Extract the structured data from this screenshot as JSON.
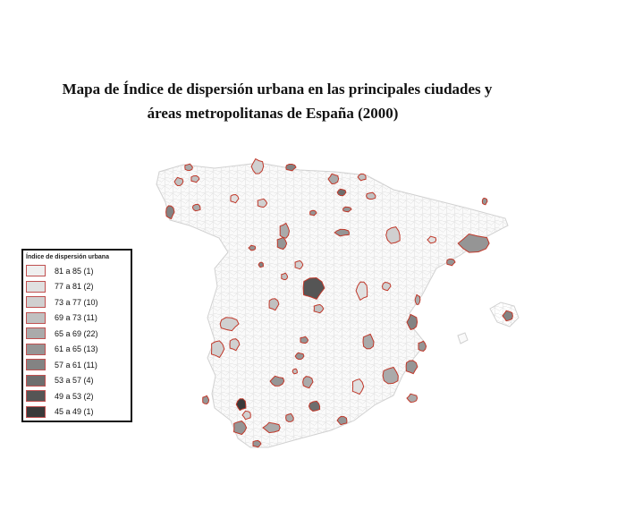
{
  "title": {
    "line1": "Mapa de Índice de dispersión urbana en las principales ciudades y",
    "line2": "áreas metropolitanas de España (2000)"
  },
  "legend": {
    "title": "Índice de dispersión urbana",
    "placement": "bottom-left",
    "items": [
      {
        "label": "81 a 85 (1)",
        "color": "#efefef"
      },
      {
        "label": "77 a 81 (2)",
        "color": "#e0e0e0"
      },
      {
        "label": "73 a 77 (10)",
        "color": "#d0d0d0"
      },
      {
        "label": "69 a 73 (11)",
        "color": "#c0c0c0"
      },
      {
        "label": "65 a 69 (22)",
        "color": "#aaaaaa"
      },
      {
        "label": "61 a 65 (13)",
        "color": "#959595"
      },
      {
        "label": "57 a 61 (11)",
        "color": "#838383"
      },
      {
        "label": "53 a 57 (4)",
        "color": "#6e6e6e"
      },
      {
        "label": "49 a 53 (2)",
        "color": "#555555"
      },
      {
        "label": "45 a 49 (1)",
        "color": "#3a3a3a"
      }
    ]
  },
  "colors": {
    "municipality_border": "#d9d9d9",
    "highlight_border": "#c0392b"
  }
}
